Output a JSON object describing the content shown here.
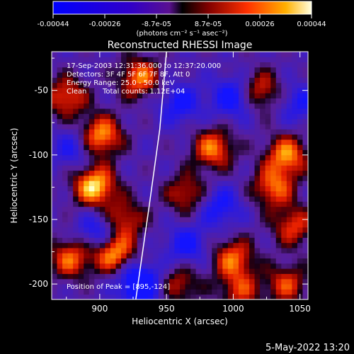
{
  "chart_data": {
    "type": "heatmap",
    "title": "Reconstructed RHESSI Image",
    "xlabel": "Heliocentric X (arcsec)",
    "ylabel": "Heliocentric Y (arcsec)",
    "xlim": [
      864,
      1056
    ],
    "ylim": [
      -212,
      -20
    ],
    "x_ticks": [
      900,
      950,
      1000,
      1050
    ],
    "y_ticks": [
      -50,
      -100,
      -150,
      -200
    ],
    "colorbar": {
      "min": -0.00044,
      "max": 0.00044,
      "ticks": [
        "-0.00044",
        "-0.00026",
        "-8.7e-05",
        "8.7e-05",
        "0.00026",
        "0.00044"
      ],
      "unit_label": "(photons cm⁻² s⁻¹ asec⁻²)"
    },
    "annotations": {
      "time_range": "17-Sep-2003 12:31:36.000 to 12:37:20.000",
      "detectors": "Detectors: 3F 4F 5F 6F 7F 8F, Att 0",
      "energy_range": "Energy Range: 25.0 - 50.0 keV",
      "method": "Clean",
      "total_counts": "Total counts: 1.12E+04",
      "peak": "Position of Peak = [895,-124]"
    },
    "limb_curve": [
      [
        950,
        -20
      ],
      [
        945,
        -80
      ],
      [
        937,
        -140
      ],
      [
        927,
        -212
      ]
    ],
    "hot_spots": [
      {
        "x": 896,
        "y": -124,
        "v": 1.0
      },
      {
        "x": 901,
        "y": -85,
        "v": 0.85
      },
      {
        "x": 910,
        "y": -175,
        "v": 0.9
      },
      {
        "x": 878,
        "y": -180,
        "v": 0.7
      },
      {
        "x": 930,
        "y": -40,
        "v": 0.75
      },
      {
        "x": 918,
        "y": -150,
        "v": 0.6
      },
      {
        "x": 1040,
        "y": -100,
        "v": 0.8
      },
      {
        "x": 1030,
        "y": -125,
        "v": 0.7
      },
      {
        "x": 985,
        "y": -95,
        "v": 0.75
      },
      {
        "x": 1000,
        "y": -180,
        "v": 0.7
      },
      {
        "x": 1040,
        "y": -200,
        "v": 0.6
      },
      {
        "x": 1020,
        "y": -50,
        "v": 0.6
      },
      {
        "x": 965,
        "y": -130,
        "v": 0.55
      },
      {
        "x": 875,
        "y": -55,
        "v": 0.65
      },
      {
        "x": 1045,
        "y": -155,
        "v": 0.6
      },
      {
        "x": 960,
        "y": -200,
        "v": 0.5
      },
      {
        "x": 1005,
        "y": -205,
        "v": 0.55
      }
    ],
    "cold_spots": [
      {
        "x": 930,
        "y": -200,
        "v": -0.9
      },
      {
        "x": 900,
        "y": -160,
        "v": -0.6
      },
      {
        "x": 960,
        "y": -60,
        "v": -0.5
      },
      {
        "x": 1000,
        "y": -55,
        "v": -0.6
      },
      {
        "x": 990,
        "y": -140,
        "v": -0.5
      },
      {
        "x": 880,
        "y": -95,
        "v": -0.4
      },
      {
        "x": 1050,
        "y": -60,
        "v": -0.4
      },
      {
        "x": 965,
        "y": -170,
        "v": -0.5
      }
    ]
  },
  "footer": {
    "date": "5-May-2022 13:20"
  }
}
